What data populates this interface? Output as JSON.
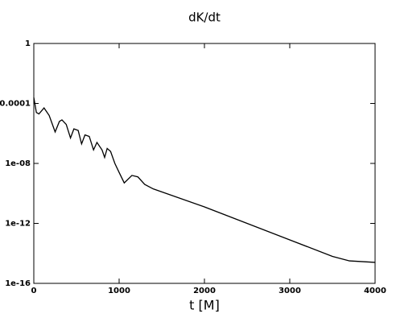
{
  "chart_data": {
    "type": "line",
    "title": "dK/dt",
    "x_label": "t [M]",
    "x": [
      0,
      30,
      60,
      120,
      180,
      250,
      300,
      330,
      380,
      430,
      470,
      520,
      560,
      600,
      650,
      700,
      740,
      800,
      830,
      860,
      900,
      950,
      1000,
      1060,
      1150,
      1220,
      1300,
      1400,
      2000,
      2500,
      3000,
      3500,
      3700,
      4000
    ],
    "series": [
      {
        "color": "#000000",
        "values": [
          0.000251,
          2.51e-05,
          2e-05,
          5.01e-05,
          1.58e-05,
          1.26e-06,
          6.31e-06,
          7.94e-06,
          3.98e-06,
          5.01e-07,
          2e-06,
          1.58e-06,
          2e-07,
          7.94e-07,
          6.31e-07,
          7.94e-08,
          2.51e-07,
          7.94e-08,
          2.51e-08,
          1e-07,
          6.31e-08,
          1e-08,
          2.51e-09,
          5.01e-10,
          1.58e-09,
          1.26e-09,
          3.98e-10,
          2e-10,
          1.26e-11,
          1e-12,
          7.94e-14,
          6.31e-15,
          3.16e-15,
          2.51e-15
        ]
      }
    ],
    "xlim": [
      0,
      4000
    ],
    "xticks": [
      0,
      1000,
      2000,
      3000,
      4000
    ],
    "ylim": [
      1e-16,
      1
    ],
    "yticks": [
      1e-16,
      1e-12,
      {
        "value": 1e-08,
        "label": "1e-08"
      },
      0.0001,
      1
    ],
    "y_scale": "log",
    "grid": false
  }
}
